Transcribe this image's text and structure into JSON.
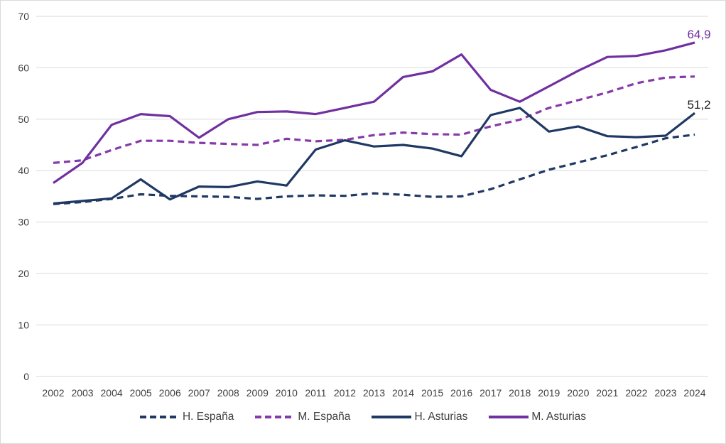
{
  "chart_data": {
    "type": "line",
    "title": "",
    "xlabel": "",
    "ylabel": "",
    "x": [
      2002,
      2003,
      2004,
      2005,
      2006,
      2007,
      2008,
      2009,
      2010,
      2011,
      2012,
      2013,
      2014,
      2015,
      2016,
      2017,
      2018,
      2019,
      2020,
      2021,
      2022,
      2023,
      2024
    ],
    "y_ticks": [
      0,
      10,
      20,
      30,
      40,
      50,
      60,
      70
    ],
    "ylim": [
      0,
      70
    ],
    "grid": true,
    "legend_position": "bottom",
    "series": [
      {
        "name": "H. España",
        "style": "dashed",
        "color": "#1F3864",
        "values": [
          33.5,
          33.9,
          34.5,
          35.4,
          35.1,
          35.0,
          34.9,
          34.5,
          35.0,
          35.2,
          35.1,
          35.6,
          35.3,
          34.9,
          35.0,
          36.4,
          38.3,
          40.2,
          41.6,
          43.0,
          44.6,
          46.3,
          47.0
        ]
      },
      {
        "name": "M. España",
        "style": "dashed",
        "color": "#8639A8",
        "values": [
          41.5,
          42.0,
          44.0,
          45.8,
          45.8,
          45.4,
          45.2,
          45.0,
          46.2,
          45.7,
          46.0,
          46.9,
          47.4,
          47.1,
          47.0,
          48.6,
          49.9,
          52.2,
          53.7,
          55.2,
          57.0,
          58.1,
          58.3
        ]
      },
      {
        "name": "H. Asturias",
        "style": "solid",
        "color": "#1F3864",
        "values": [
          33.6,
          34.1,
          34.6,
          38.3,
          34.4,
          36.9,
          36.8,
          37.9,
          37.1,
          44.1,
          45.9,
          44.7,
          45.0,
          44.3,
          42.8,
          50.8,
          52.2,
          47.6,
          48.6,
          46.7,
          46.5,
          46.8,
          51.2
        ]
      },
      {
        "name": "M. Asturias",
        "style": "solid",
        "color": "#7030A0",
        "values": [
          37.6,
          41.5,
          48.9,
          51.0,
          50.6,
          46.4,
          50.0,
          51.4,
          51.5,
          51.0,
          52.2,
          53.4,
          58.2,
          59.3,
          62.6,
          55.7,
          53.4,
          56.4,
          59.4,
          62.1,
          62.3,
          63.4,
          64.9
        ]
      }
    ],
    "end_labels": [
      {
        "series_index": 3,
        "text": "64,9",
        "color": "#7030A0"
      },
      {
        "series_index": 2,
        "text": "51,2",
        "color": "#1a1a1a"
      }
    ]
  },
  "colors": {
    "background": "#FFFFFF",
    "gridline": "#D9D9D9",
    "axis_text": "#404040",
    "border": "#D9D9D9"
  }
}
